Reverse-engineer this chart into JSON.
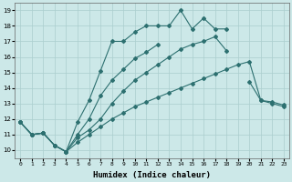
{
  "xlabel": "Humidex (Indice chaleur)",
  "bg_color": "#cce8e8",
  "grid_color": "#aacece",
  "line_color": "#2d7070",
  "xlim": [
    -0.5,
    23.5
  ],
  "ylim": [
    9.5,
    19.5
  ],
  "xticks": [
    0,
    1,
    2,
    3,
    4,
    5,
    6,
    7,
    8,
    9,
    10,
    11,
    12,
    13,
    14,
    15,
    16,
    17,
    18,
    19,
    20,
    21,
    22,
    23
  ],
  "yticks": [
    10,
    11,
    12,
    13,
    14,
    15,
    16,
    17,
    18,
    19
  ],
  "lines": [
    [
      0,
      1,
      2,
      3,
      4,
      5,
      6,
      7,
      8,
      9,
      10,
      11,
      12,
      13,
      14,
      15,
      16,
      17,
      18,
      19,
      20,
      21,
      22,
      23
    ],
    [
      11.8,
      11.0,
      11.1,
      10.3,
      9.9,
      10.5,
      11.0,
      11.5,
      12.0,
      12.4,
      12.8,
      13.1,
      13.4,
      13.7,
      14.0,
      14.3,
      14.6,
      14.9,
      15.2,
      15.5,
      15.7,
      13.2,
      13.1,
      12.9
    ],
    [
      0,
      1,
      2,
      3,
      4,
      5,
      6,
      7,
      8,
      9,
      10,
      11,
      12,
      13,
      14,
      15,
      16,
      17,
      18,
      19,
      20,
      21,
      22,
      23
    ],
    [
      11.8,
      11.0,
      11.1,
      10.3,
      9.9,
      11.0,
      12.0,
      13.5,
      14.5,
      15.2,
      15.9,
      16.3,
      16.8,
      null,
      null,
      null,
      null,
      null,
      null,
      null,
      null,
      null,
      null,
      null
    ],
    [
      0,
      1,
      2,
      3,
      4,
      5,
      6,
      7,
      8,
      9,
      10,
      11,
      12,
      13,
      14,
      15,
      16,
      17,
      18,
      19,
      20,
      21,
      22,
      23
    ],
    [
      11.8,
      11.0,
      11.1,
      10.3,
      9.9,
      10.8,
      11.3,
      12.0,
      13.0,
      13.8,
      14.5,
      15.0,
      15.5,
      16.0,
      16.5,
      16.8,
      17.0,
      17.3,
      16.4,
      null,
      14.4,
      13.2,
      13.0,
      12.8
    ],
    [
      0,
      1,
      2,
      3,
      4,
      5,
      6,
      7,
      8,
      9,
      10,
      11,
      12,
      13,
      14,
      15,
      16,
      17,
      18,
      19
    ],
    [
      11.8,
      11.0,
      11.1,
      10.3,
      9.9,
      11.8,
      13.2,
      15.1,
      17.0,
      17.0,
      17.6,
      18.0,
      18.0,
      18.0,
      19.0,
      17.8,
      18.5,
      17.8,
      17.8,
      null
    ]
  ]
}
